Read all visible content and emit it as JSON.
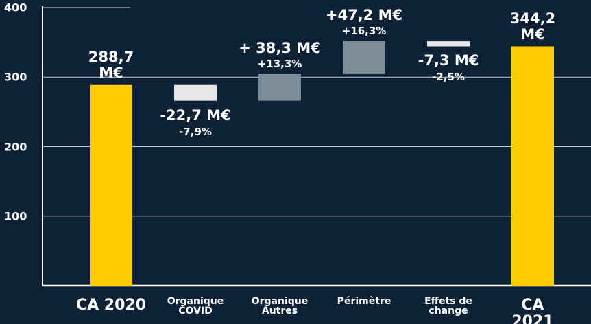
{
  "chart_data": {
    "type": "waterfall",
    "categories": [
      "CA 2020",
      "Organique\nCOVID",
      "Organique\nAutres",
      "Périmètre",
      "Effets de\nchange",
      "CA 2021"
    ],
    "values": [
      288.7,
      -22.7,
      38.3,
      47.2,
      -7.3,
      344.2
    ],
    "value_labels": [
      "288,7\nM€",
      "-22,7 M€",
      "+ 38,3 M€",
      "+47,2 M€",
      "-7,3 M€",
      "344,2\nM€"
    ],
    "percent_labels": [
      null,
      "-7,9%",
      "+13,3%",
      "+16,3%",
      "-2,5%",
      null
    ],
    "measure": [
      "absolute",
      "relative",
      "relative",
      "relative",
      "relative",
      "total"
    ],
    "colors": [
      "#ffcc00",
      "#e6e6e6",
      "#7d8c99",
      "#7d8c99",
      "#e6e6e6",
      "#ffcc00"
    ],
    "ylim": [
      0,
      400
    ],
    "yticks": [
      100,
      200,
      300,
      400
    ],
    "grid": true
  }
}
